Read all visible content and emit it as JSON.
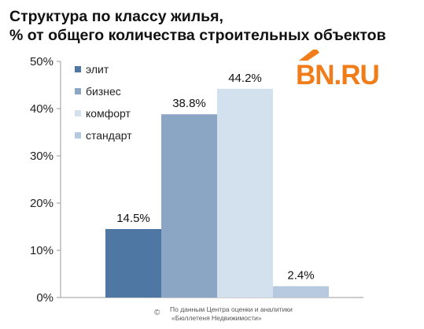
{
  "header": {
    "title_line1": "Структура по классу жилья,",
    "title_line2": "% от общего количества строительных объектов"
  },
  "logo": {
    "text": "BN.RU",
    "color": "#f07d1a"
  },
  "source": {
    "copyright": "©",
    "line1": "По данным Центра оценки и аналитики",
    "line2": "«Бюллетеня Недвижимости»"
  },
  "chart_data": {
    "type": "bar",
    "title": "Структура по классу жилья, % от общего количества строительных объектов",
    "xlabel": "",
    "ylabel": "",
    "ylim": [
      0,
      50
    ],
    "yticks": [
      "0%",
      "10%",
      "20%",
      "30%",
      "40%",
      "50%"
    ],
    "grid": false,
    "legend_position": "top-left",
    "series": [
      {
        "name": "элит",
        "value": 14.5,
        "label": "14.5%",
        "color": "#4f77a4"
      },
      {
        "name": "бизнес",
        "value": 38.8,
        "label": "38.8%",
        "color": "#8aa6c4"
      },
      {
        "name": "комфорт",
        "value": 44.2,
        "label": "44.2%",
        "color": "#d3e0ee"
      },
      {
        "name": "стандарт",
        "value": 2.4,
        "label": "2.4%",
        "color": "#b7c9de"
      }
    ]
  }
}
